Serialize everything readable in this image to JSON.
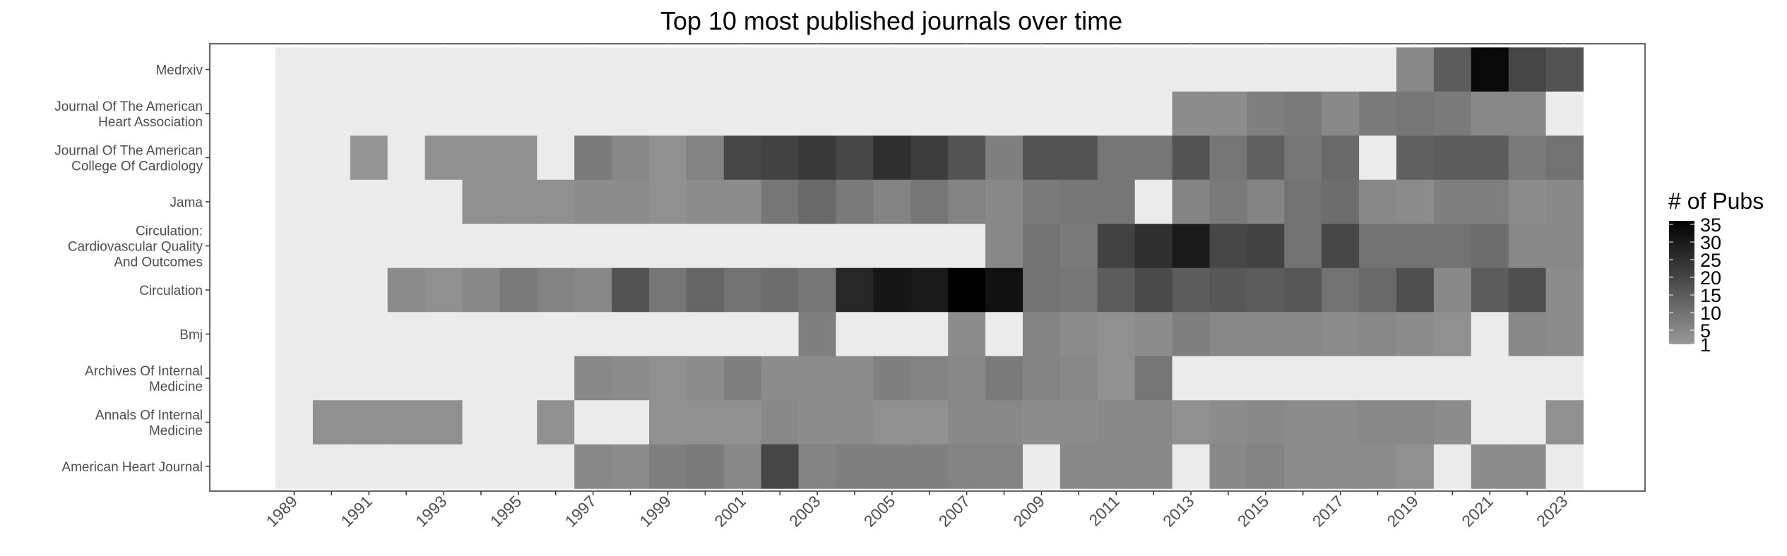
{
  "chart_data": {
    "type": "heatmap",
    "title": "Top 10 most published journals over time",
    "xlabel": "",
    "ylabel": "",
    "years": [
      1989,
      1990,
      1991,
      1992,
      1993,
      1994,
      1995,
      1996,
      1997,
      1998,
      1999,
      2000,
      2001,
      2002,
      2003,
      2004,
      2005,
      2006,
      2007,
      2008,
      2009,
      2010,
      2011,
      2012,
      2013,
      2014,
      2015,
      2016,
      2017,
      2018,
      2019,
      2020,
      2021,
      2022,
      2023
    ],
    "x_tick_labels": [
      "1989",
      "1991",
      "1993",
      "1995",
      "1997",
      "1999",
      "2001",
      "2003",
      "2005",
      "2007",
      "2009",
      "2011",
      "2013",
      "2015",
      "2017",
      "2019",
      "2021",
      "2023"
    ],
    "journals": [
      {
        "name": "Medrxiv",
        "lines": [
          "Medrxiv"
        ],
        "values": [
          null,
          null,
          null,
          null,
          null,
          null,
          null,
          null,
          null,
          null,
          null,
          null,
          null,
          null,
          null,
          null,
          null,
          null,
          null,
          null,
          null,
          null,
          null,
          null,
          null,
          null,
          null,
          null,
          null,
          null,
          5,
          15,
          34,
          20,
          17
        ]
      },
      {
        "name": "Journal Of The American Heart Association",
        "lines": [
          "Journal Of The American",
          "Heart Association"
        ],
        "values": [
          null,
          null,
          null,
          null,
          null,
          null,
          null,
          null,
          null,
          null,
          null,
          null,
          null,
          null,
          null,
          null,
          null,
          null,
          null,
          null,
          null,
          null,
          null,
          null,
          4,
          4,
          7,
          8,
          5,
          8,
          9,
          8,
          5,
          5,
          null
        ]
      },
      {
        "name": "Journal Of The American College Of Cardiology",
        "lines": [
          "Journal Of The American",
          "College Of Cardiology"
        ],
        "values": [
          null,
          null,
          2,
          null,
          3,
          3,
          3,
          null,
          8,
          5,
          3,
          6,
          20,
          21,
          23,
          20,
          25,
          22,
          17,
          7,
          17,
          17,
          9,
          9,
          17,
          9,
          14,
          9,
          12,
          null,
          14,
          15,
          15,
          8,
          10
        ]
      },
      {
        "name": "Jama",
        "lines": [
          "Jama"
        ],
        "values": [
          null,
          null,
          null,
          null,
          null,
          3,
          3,
          3,
          4,
          4,
          3,
          4,
          4,
          9,
          12,
          8,
          6,
          9,
          6,
          5,
          8,
          9,
          9,
          null,
          6,
          8,
          6,
          10,
          11,
          5,
          4,
          7,
          7,
          4,
          5
        ]
      },
      {
        "name": "Circulation: Cardiovascular Quality And Outcomes",
        "lines": [
          "Circulation:",
          "Cardiovascular Quality",
          "And Outcomes"
        ],
        "values": [
          null,
          null,
          null,
          null,
          null,
          null,
          null,
          null,
          null,
          null,
          null,
          null,
          null,
          null,
          null,
          null,
          null,
          null,
          null,
          5,
          10,
          8,
          21,
          25,
          30,
          20,
          21,
          10,
          20,
          10,
          10,
          10,
          11,
          5,
          5
        ]
      },
      {
        "name": "Circulation",
        "lines": [
          "Circulation"
        ],
        "values": [
          null,
          null,
          null,
          4,
          3,
          5,
          8,
          6,
          5,
          17,
          9,
          13,
          10,
          11,
          9,
          27,
          31,
          30,
          36,
          32,
          10,
          9,
          15,
          19,
          15,
          16,
          15,
          16,
          10,
          12,
          18,
          5,
          15,
          18,
          4
        ]
      },
      {
        "name": "Bmj",
        "lines": [
          "Bmj"
        ],
        "values": [
          null,
          null,
          null,
          null,
          null,
          null,
          null,
          null,
          null,
          null,
          null,
          null,
          null,
          null,
          7,
          null,
          null,
          null,
          4,
          null,
          6,
          4,
          3,
          4,
          7,
          5,
          5,
          5,
          4,
          5,
          4,
          3,
          null,
          5,
          4
        ]
      },
      {
        "name": "Archives Of Internal Medicine",
        "lines": [
          "Archives Of Internal",
          "Medicine"
        ],
        "values": [
          null,
          null,
          null,
          null,
          null,
          null,
          null,
          null,
          5,
          4,
          3,
          4,
          7,
          4,
          4,
          4,
          7,
          6,
          5,
          8,
          6,
          5,
          3,
          9,
          null,
          null,
          null,
          null,
          null,
          null,
          null,
          null,
          null,
          null,
          null
        ]
      },
      {
        "name": "Annals Of Internal Medicine",
        "lines": [
          "Annals Of Internal",
          "Medicine"
        ],
        "values": [
          null,
          3,
          3,
          3,
          3,
          null,
          null,
          3,
          null,
          null,
          3,
          3,
          3,
          5,
          4,
          4,
          3,
          3,
          5,
          5,
          4,
          4,
          5,
          5,
          3,
          4,
          5,
          4,
          4,
          5,
          5,
          4,
          null,
          null,
          3
        ]
      },
      {
        "name": "American Heart Journal",
        "lines": [
          "American Heart Journal"
        ],
        "values": [
          null,
          null,
          null,
          null,
          null,
          null,
          null,
          null,
          5,
          4,
          7,
          8,
          5,
          20,
          6,
          7,
          7,
          7,
          6,
          6,
          null,
          5,
          5,
          5,
          null,
          5,
          6,
          4,
          4,
          4,
          3,
          null,
          4,
          4,
          null
        ]
      }
    ],
    "legend": {
      "title": "# of Pubs",
      "ticks": [
        1,
        5,
        10,
        15,
        20,
        25,
        30,
        35
      ]
    },
    "value_range": [
      1,
      36
    ],
    "colors": {
      "low": "#999999",
      "high": "#000000",
      "missing": "#ebebeb"
    },
    "legend_position": "right",
    "grid": true
  }
}
